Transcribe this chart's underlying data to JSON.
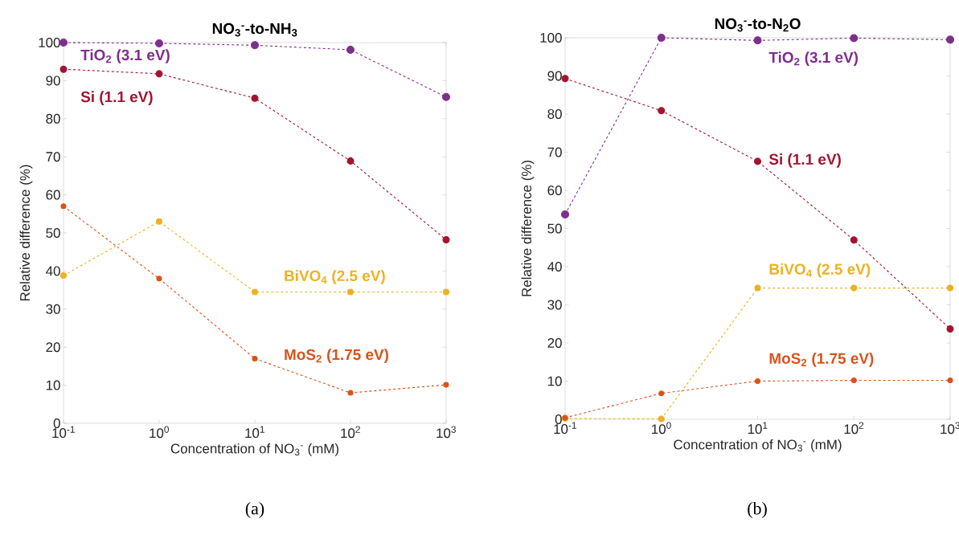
{
  "chart_data": [
    {
      "type": "line",
      "title": "NO$_{3}$$^{-}$-to-NH$_{3}$",
      "xlabel": "Concentration of NO$_{3}$$^{-}$ (mM)",
      "ylabel": "Relative difference (%)",
      "annotations": [
        "(a)"
      ],
      "x": [
        0.1,
        1,
        10,
        100,
        1000
      ],
      "log": "x",
      "marker": "circle",
      "line_style": "dashed",
      "grid": false,
      "xlim": [
        0.1,
        1000
      ],
      "xticks": [
        {
          "value": 0.1,
          "label": "10$^{-1}$"
        },
        {
          "value": 1,
          "label": "10$^{0}$"
        },
        {
          "value": 10,
          "label": "10$^{1}$"
        },
        {
          "value": 100,
          "label": "10$^{2}$"
        },
        {
          "value": 1000,
          "label": "10$^{3}$"
        }
      ],
      "ylim": [
        0,
        100
      ],
      "yticks": [
        0,
        10,
        20,
        30,
        40,
        50,
        60,
        70,
        80,
        90,
        100
      ],
      "series": [
        {
          "name": "TiO$_{2}$ (3.1 eV)",
          "color": "#7e2f8e",
          "values": [
            100,
            99.8,
            99.3,
            98.1,
            85.7
          ]
        },
        {
          "name": "Si (1.1 eV)",
          "color": "#a2142f",
          "values": [
            93,
            91.8,
            85.4,
            68.9,
            48.2
          ]
        },
        {
          "name": "BiVO$_{4}$ (2.5 eV)",
          "color": "#edb120",
          "values": [
            38.8,
            53,
            34.5,
            34.5,
            34.5
          ]
        },
        {
          "name": "MoS$_{2}$ (1.75 eV)",
          "color": "#d95319",
          "values": [
            57,
            38,
            17,
            8,
            10.1
          ]
        }
      ]
    },
    {
      "type": "line",
      "title": "NO$_{3}$$^{-}$-to-N$_{2}$O",
      "xlabel": "Concentration of NO$_{3}$$^{-}$ (mM)",
      "ylabel": "Relative difference (%)",
      "annotations": [
        "(b)"
      ],
      "x": [
        0.1,
        1,
        10,
        100,
        1000
      ],
      "log": "x",
      "marker": "circle",
      "line_style": "dashed",
      "grid": false,
      "xlim": [
        0.1,
        1000
      ],
      "xticks": [
        {
          "value": 0.1,
          "label": "10$^{-1}$"
        },
        {
          "value": 1,
          "label": "10$^{0}$"
        },
        {
          "value": 10,
          "label": "10$^{1}$"
        },
        {
          "value": 100,
          "label": "10$^{2}$"
        },
        {
          "value": 1000,
          "label": "10$^{3}$"
        }
      ],
      "ylim": [
        0,
        100
      ],
      "yticks": [
        0,
        10,
        20,
        30,
        40,
        50,
        60,
        70,
        80,
        90,
        100
      ],
      "series": [
        {
          "name": "TiO$_{2}$ (3.1 eV)",
          "color": "#7e2f8e",
          "values": [
            53.7,
            100,
            99.3,
            99.9,
            99.5
          ]
        },
        {
          "name": "Si (1.1 eV)",
          "color": "#a2142f",
          "values": [
            89.3,
            80.9,
            67.6,
            47,
            23.7
          ]
        },
        {
          "name": "BiVO$_{4}$ (2.5 eV)",
          "color": "#edb120",
          "values": [
            0.2,
            0.1,
            34.4,
            34.4,
            34.4
          ]
        },
        {
          "name": "MoS$_{2}$ (1.75 eV)",
          "color": "#d95319",
          "values": [
            0.4,
            6.8,
            10,
            10.2,
            10.2
          ]
        }
      ]
    }
  ]
}
